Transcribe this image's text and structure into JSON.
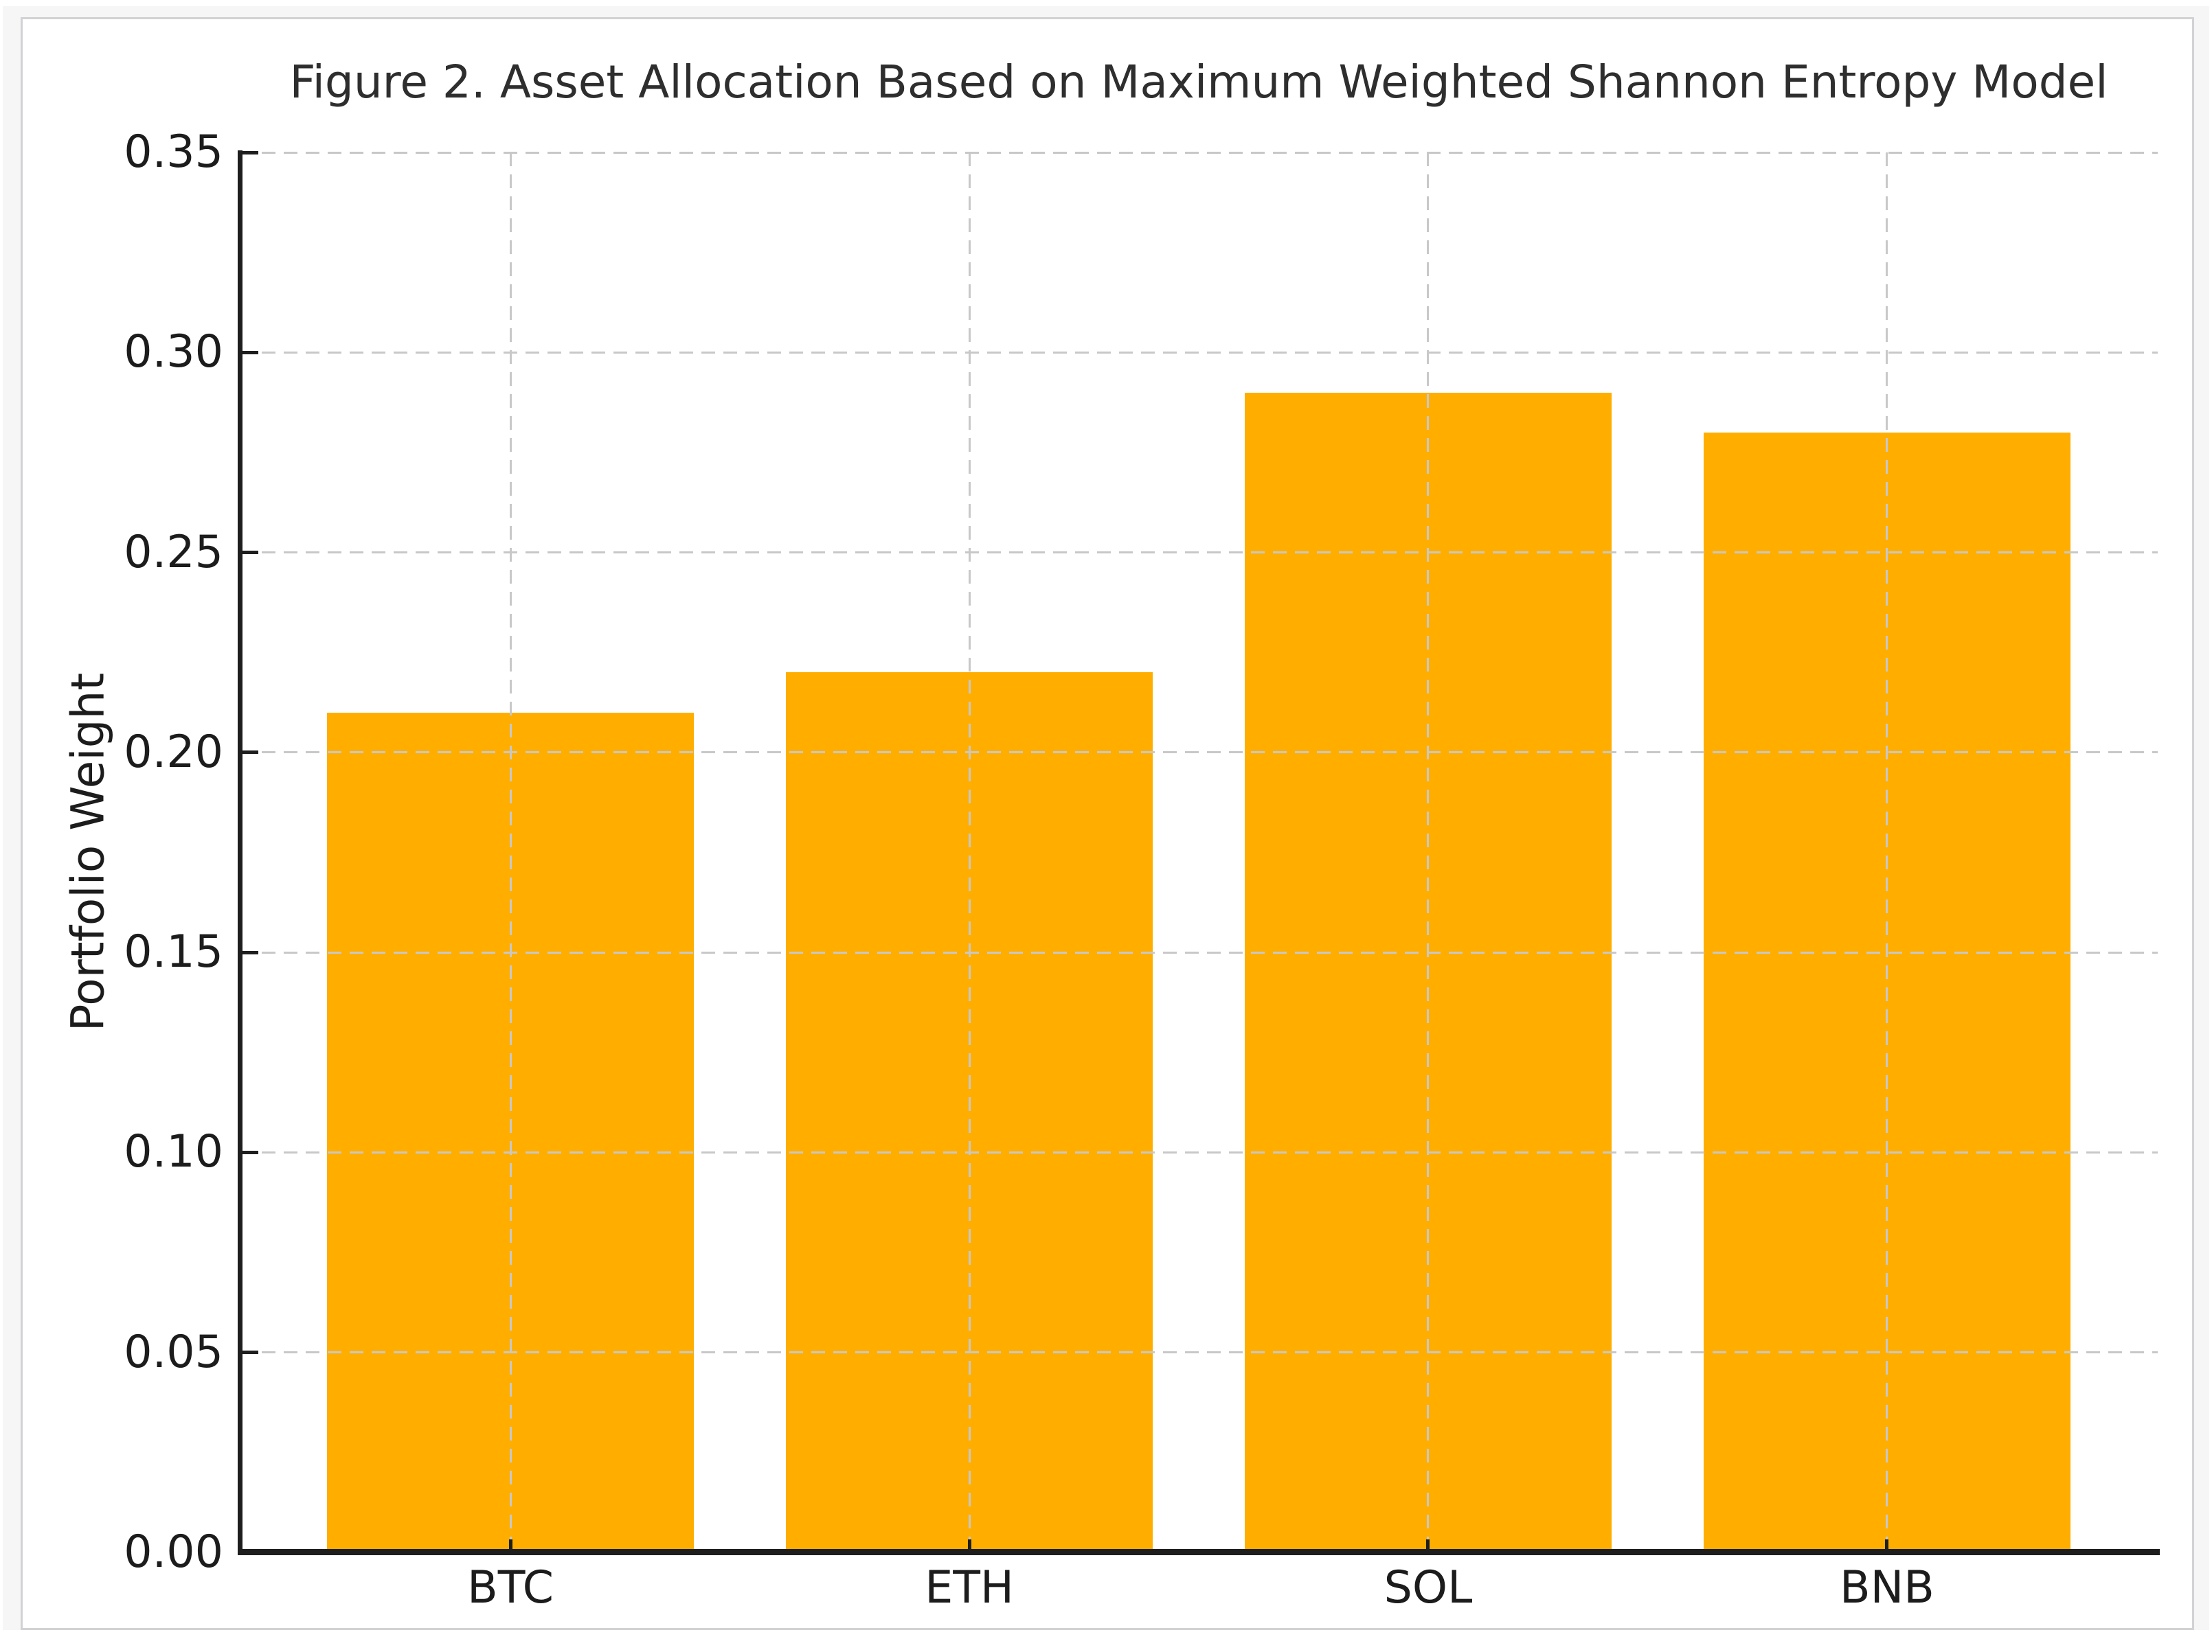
{
  "chart_data": {
    "type": "bar",
    "title": "Figure 2. Asset Allocation Based on Maximum Weighted Shannon Entropy Model",
    "xlabel": "",
    "ylabel": "Portfolio Weight",
    "categories": [
      "BTC",
      "ETH",
      "SOL",
      "BNB"
    ],
    "values": [
      0.21,
      0.22,
      0.29,
      0.28
    ],
    "ylim": [
      0,
      0.35
    ],
    "yticks": [
      0.0,
      0.05,
      0.1,
      0.15,
      0.2,
      0.25,
      0.3,
      0.35
    ],
    "ytick_labels": [
      "0.00",
      "0.05",
      "0.10",
      "0.15",
      "0.20",
      "0.25",
      "0.30",
      "0.35"
    ],
    "grid": "both, dashed, drawn above bars",
    "legend": "none",
    "bar_color": "#FFAE00",
    "grid_color": "#c8c8c8",
    "axis_color": "#1e1e1e",
    "text_color": "#1c1c1c",
    "title_color": "#2e2e2e",
    "figure_background": "#ffffff",
    "page_background": "#f6f6f7"
  }
}
